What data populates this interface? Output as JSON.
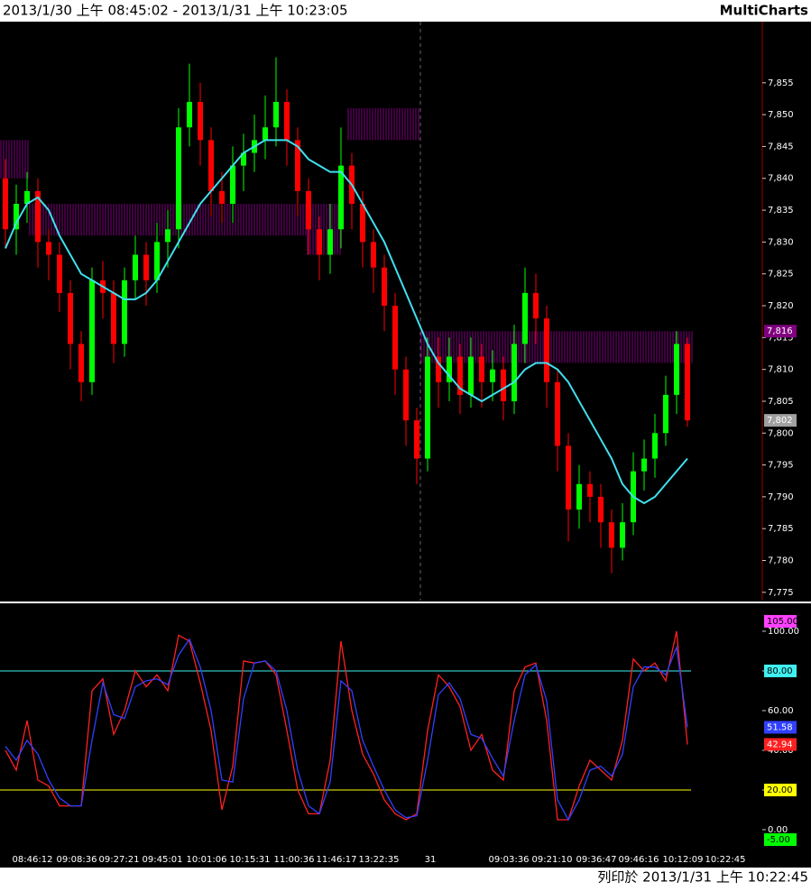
{
  "header": {
    "range": "2013/1/30 上午 08:45:02 - 2013/1/31 上午 10:23:05",
    "brand": "MultiCharts"
  },
  "footer": "列印於 2013/1/31 上午 10:22:45",
  "chart_data": [
    {
      "type": "candlestick",
      "open": [
        7840,
        7832,
        7836,
        7838,
        7830,
        7828,
        7822,
        7814,
        7808,
        7824,
        7822,
        7814,
        7824,
        7828,
        7824,
        7830,
        7832,
        7848,
        7852,
        7846,
        7838,
        7836,
        7842,
        7844,
        7846,
        7848,
        7852,
        7846,
        7838,
        7832,
        7828,
        7832,
        7842,
        7836,
        7830,
        7826,
        7820,
        7810,
        7802,
        7796,
        7812,
        7808,
        7812,
        7806,
        7812,
        7808,
        7810,
        7805,
        7814,
        7822,
        7818,
        7808,
        7798,
        7788,
        7792,
        7790,
        7786,
        7782,
        7786,
        7794,
        7796,
        7800,
        7806,
        7814
      ],
      "high": [
        7843,
        7839,
        7841,
        7840,
        7832,
        7830,
        7824,
        7816,
        7826,
        7827,
        7824,
        7826,
        7831,
        7830,
        7833,
        7835,
        7851,
        7858,
        7855,
        7848,
        7841,
        7845,
        7847,
        7850,
        7853,
        7859,
        7854,
        7848,
        7840,
        7834,
        7836,
        7848,
        7844,
        7838,
        7832,
        7828,
        7822,
        7812,
        7804,
        7815,
        7815,
        7815,
        7814,
        7815,
        7814,
        7813,
        7812,
        7817,
        7826,
        7825,
        7820,
        7810,
        7800,
        7795,
        7794,
        7792,
        7788,
        7789,
        7797,
        7799,
        7803,
        7809,
        7816,
        7815
      ],
      "low": [
        7829,
        7828,
        7833,
        7826,
        7824,
        7819,
        7810,
        7805,
        7806,
        7818,
        7811,
        7812,
        7821,
        7820,
        7822,
        7826,
        7829,
        7845,
        7842,
        7834,
        7833,
        7833,
        7838,
        7841,
        7843,
        7845,
        7842,
        7834,
        7828,
        7824,
        7825,
        7829,
        7832,
        7826,
        7822,
        7816,
        7806,
        7798,
        7792,
        7794,
        7804,
        7805,
        7803,
        7804,
        7804,
        7805,
        7802,
        7803,
        7811,
        7814,
        7804,
        7794,
        7783,
        7785,
        7786,
        7782,
        7778,
        7780,
        7784,
        7791,
        7793,
        7798,
        7803,
        7801
      ],
      "close": [
        7832,
        7836,
        7838,
        7830,
        7828,
        7822,
        7814,
        7808,
        7824,
        7822,
        7814,
        7824,
        7828,
        7824,
        7830,
        7832,
        7848,
        7852,
        7846,
        7838,
        7836,
        7842,
        7844,
        7846,
        7848,
        7852,
        7846,
        7838,
        7832,
        7828,
        7832,
        7842,
        7836,
        7830,
        7826,
        7820,
        7810,
        7802,
        7796,
        7812,
        7808,
        7812,
        7806,
        7812,
        7808,
        7810,
        7805,
        7814,
        7822,
        7818,
        7808,
        7798,
        7788,
        7792,
        7790,
        7786,
        7782,
        7786,
        7794,
        7796,
        7800,
        7806,
        7814,
        7802
      ],
      "up_color": "#00ff00",
      "down_color": "#ff0000",
      "ma": {
        "color": "#40e0f0",
        "values": [
          7829,
          7833,
          7836,
          7837,
          7835,
          7831,
          7828,
          7825,
          7824,
          7823,
          7822,
          7821,
          7821,
          7822,
          7824,
          7827,
          7830,
          7833,
          7836,
          7838,
          7840,
          7842,
          7844,
          7845,
          7846,
          7846,
          7846,
          7845,
          7843,
          7842,
          7841,
          7841,
          7839,
          7836,
          7833,
          7830,
          7826,
          7822,
          7818,
          7814,
          7811,
          7809,
          7807,
          7806,
          7805,
          7806,
          7807,
          7808,
          7810,
          7811,
          7811,
          7810,
          7808,
          7805,
          7802,
          7799,
          7796,
          7792,
          7790,
          7789,
          7790,
          7792,
          7794,
          7796
        ]
      },
      "zones": [
        {
          "lo": 7840,
          "hi": 7846
        },
        {
          "lo": 7831,
          "hi": 7836
        },
        {
          "lo": 7828,
          "hi": 7836
        },
        {
          "lo": 7846,
          "hi": 7851
        },
        {
          "lo": 7811,
          "hi": 7816
        }
      ],
      "zone_color": "#800080",
      "price_markers": [
        {
          "value": 7816,
          "label": "7,816",
          "color": "#800080"
        },
        {
          "value": 7802,
          "label": "7,802",
          "color": "#a0a0a0"
        }
      ],
      "ylim": [
        7773.7,
        7864.6
      ],
      "yticks": [
        {
          "value": 7775,
          "label": "7,775"
        },
        {
          "value": 7780,
          "label": "7,780"
        },
        {
          "value": 7785,
          "label": "7,785"
        },
        {
          "value": 7790,
          "label": "7,790"
        },
        {
          "value": 7795,
          "label": "7,795"
        },
        {
          "value": 7800,
          "label": "7,800"
        },
        {
          "value": 7805,
          "label": "7,805"
        },
        {
          "value": 7810,
          "label": "7,810"
        },
        {
          "value": 7815,
          "label": "7,815"
        },
        {
          "value": 7820,
          "label": "7,820"
        },
        {
          "value": 7825,
          "label": "7,825"
        },
        {
          "value": 7830,
          "label": "7,830"
        },
        {
          "value": 7835,
          "label": "7,835"
        },
        {
          "value": 7840,
          "label": "7,840"
        },
        {
          "value": 7845,
          "label": "7,845"
        },
        {
          "value": 7850,
          "label": "7,850"
        },
        {
          "value": 7855,
          "label": "7,855"
        }
      ]
    },
    {
      "type": "line",
      "series": [
        {
          "name": "%K",
          "color": "#ff2020",
          "values": [
            40,
            30,
            55,
            25,
            22,
            12,
            12,
            12,
            70,
            76,
            48,
            60,
            80,
            72,
            78,
            70,
            98,
            95,
            74,
            50,
            10,
            32,
            85,
            84,
            85,
            78,
            50,
            20,
            8,
            8,
            35,
            95,
            60,
            38,
            28,
            15,
            8,
            5,
            8,
            50,
            78,
            72,
            62,
            40,
            48,
            30,
            25,
            70,
            82,
            84,
            55,
            5,
            5,
            22,
            35,
            30,
            25,
            45,
            86,
            80,
            84,
            75,
            100,
            42.94
          ]
        },
        {
          "name": "%D",
          "color": "#3040ff",
          "values": [
            42,
            35,
            45,
            38,
            25,
            16,
            12,
            12,
            45,
            74,
            58,
            56,
            72,
            75,
            76,
            73,
            88,
            96,
            82,
            60,
            25,
            24,
            66,
            84,
            85,
            80,
            60,
            30,
            12,
            8,
            24,
            75,
            70,
            45,
            32,
            20,
            10,
            6,
            7,
            35,
            68,
            74,
            66,
            48,
            46,
            36,
            27,
            55,
            78,
            83,
            65,
            15,
            5,
            15,
            30,
            32,
            27,
            38,
            72,
            82,
            82,
            78,
            92,
            51.58
          ]
        }
      ],
      "levels": [
        {
          "value": 80,
          "label": "80.00",
          "color": "#40f0f0"
        },
        {
          "value": 20,
          "label": "20.00",
          "color": "#ffff00"
        }
      ],
      "markers": [
        {
          "value": 105,
          "label": "105.00",
          "color": "#ff40ff"
        },
        {
          "value": -5,
          "label": "-5.00",
          "color": "#00ff00"
        }
      ],
      "ylim": [
        -10,
        112.7
      ],
      "yticks": [
        {
          "value": 0,
          "label": "0.00"
        },
        {
          "value": 20,
          "label": "20.00"
        },
        {
          "value": 40,
          "label": "40.00"
        },
        {
          "value": 60,
          "label": "60.00"
        },
        {
          "value": 80,
          "label": "80.00"
        },
        {
          "value": 100,
          "label": "100.00"
        }
      ],
      "time_labels": [
        "08:46:12",
        "09:08:36",
        "09:27:21",
        "09:45:01",
        "10:01:06",
        "10:15:31",
        "11:00:36",
        "11:46:17",
        "13:22:35",
        "31",
        "09:03:36",
        "09:21:10",
        "09:36:47",
        "09:46:16",
        "10:12:09",
        "10:22:45"
      ]
    }
  ]
}
